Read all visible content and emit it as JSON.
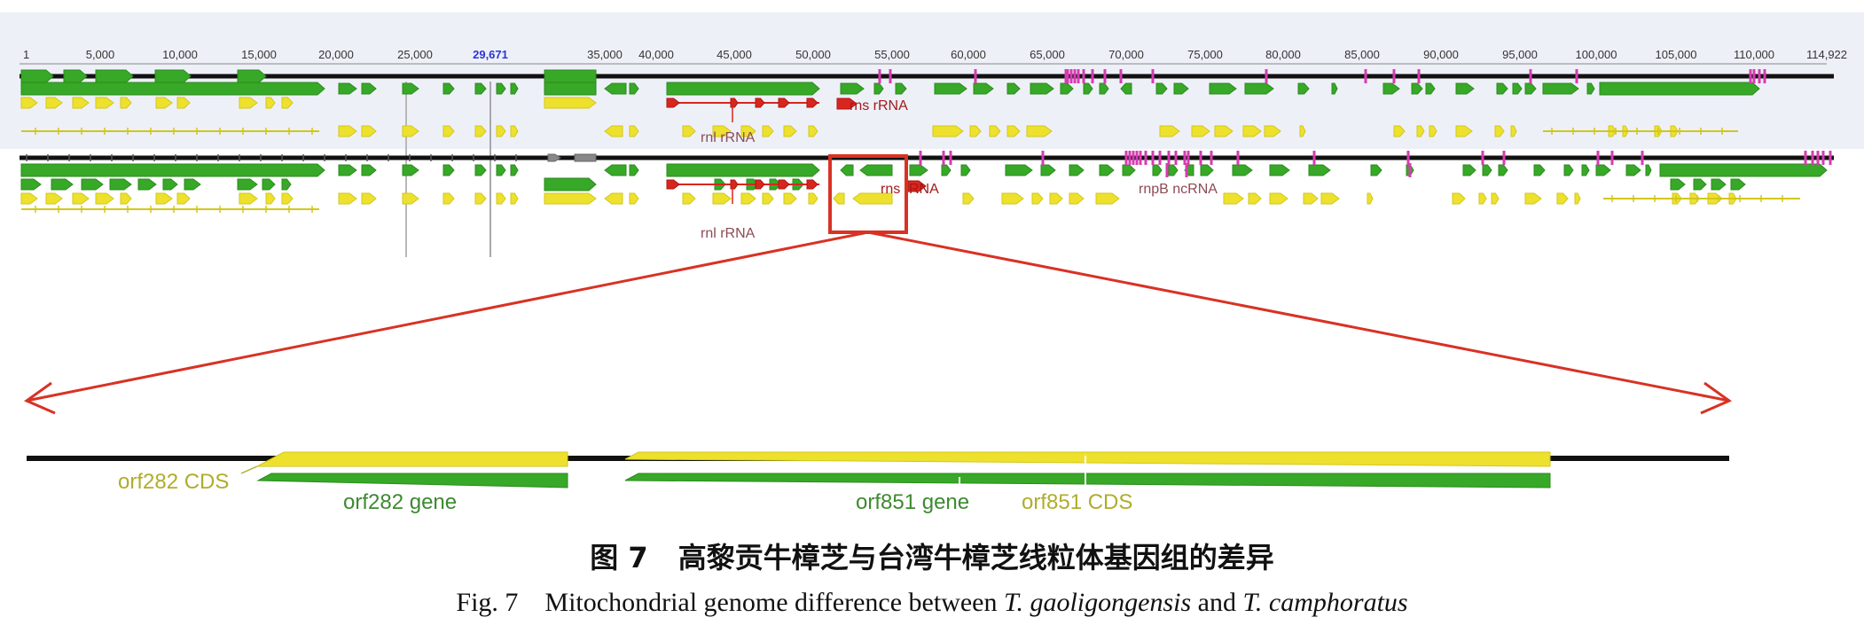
{
  "ruler": {
    "ticks": [
      "1",
      "5,000",
      "10,000",
      "15,000",
      "20,000",
      "25,000",
      "29,671",
      "35,000",
      "40,000",
      "45,000",
      "50,000",
      "55,000",
      "60,000",
      "65,000",
      "70,000",
      "75,000",
      "80,000",
      "85,000",
      "90,000",
      "95,000",
      "100,000",
      "105,000",
      "110,000",
      "114,922"
    ],
    "highlight": "29,671"
  },
  "track1_labels": {
    "rns": "rns rRNA",
    "rnl": "rnl rRNA"
  },
  "track2_labels": {
    "rns": "rns rRNA",
    "rnpb": "rnpB ncRNA",
    "rnl": "rnl rRNA"
  },
  "zoom_labels": {
    "orf282_cds": "orf282 CDS",
    "orf282_gene": "orf282 gene",
    "orf851_gene": "orf851 gene",
    "orf851_cds": "orf851 CDS"
  },
  "caption": {
    "fig_label_zh": "图 7",
    "title_zh": "高黎贡牛樟芝与台湾牛樟芝线粒体基因组的差异",
    "fig_label_en": "Fig. 7",
    "en_prefix": "Mitochondrial genome difference between ",
    "species1": "T. gaoligongensis",
    "en_and": " and ",
    "species2": "T. camphoratus"
  },
  "colors": {
    "gene": "#37a827",
    "cds": "#eee12e",
    "rrna": "#d8261e",
    "repeat": "#d83bb2",
    "highlight_box": "#d83225",
    "backbone": "#111111"
  }
}
